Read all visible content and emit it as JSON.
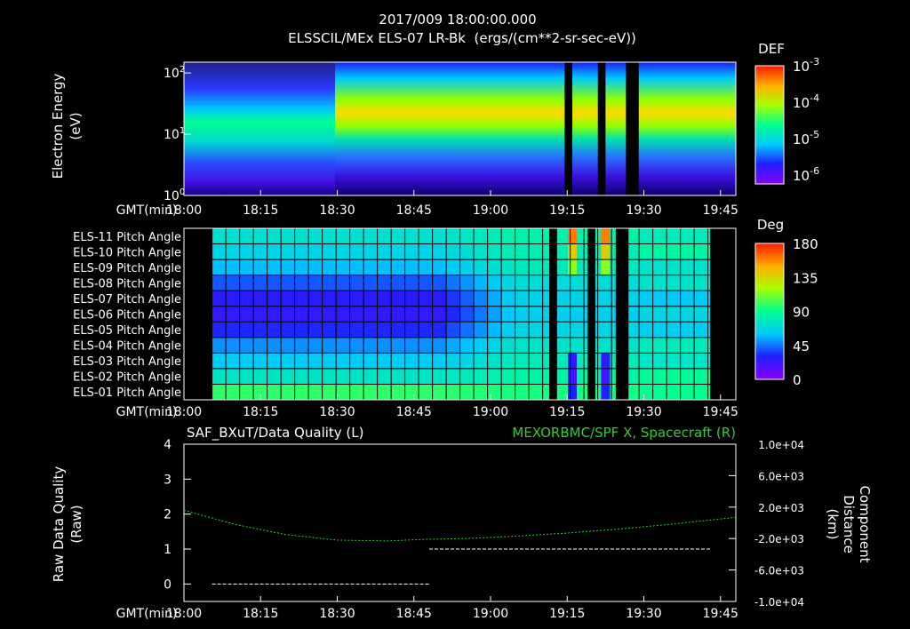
{
  "header": {
    "timestamp": "2017/009 18:00:00.000",
    "subtitle": "ELSSCIL/MEx ELS-07 LR-Bk  (ergs/(cm**2-sr-sec-eV))"
  },
  "chart_data": [
    {
      "type": "heatmap",
      "name": "electron-energy-spectrogram",
      "ylabel_line1": "Electron Energy",
      "ylabel_line2": "(eV)",
      "yscale": "log",
      "ylim": [
        1,
        150
      ],
      "yticks": [
        {
          "v": 1,
          "label": "10",
          "exp": "0"
        },
        {
          "v": 10,
          "label": "10",
          "exp": "1"
        },
        {
          "v": 100,
          "label": "10",
          "exp": "2"
        }
      ],
      "xlabel_prefix": "GMT(min)",
      "x_ticks": [
        "18:00",
        "18:15",
        "18:30",
        "18:45",
        "19:00",
        "19:15",
        "19:30",
        "19:45"
      ],
      "x_range_min": [
        0,
        108
      ],
      "data_gaps_min": [
        [
          74.5,
          76
        ],
        [
          81,
          82.5
        ],
        [
          86.5,
          89
        ]
      ],
      "colorbar": {
        "title": "DEF",
        "labels": [
          {
            "label": "10",
            "exp": "-3"
          },
          {
            "label": "10",
            "exp": "-4"
          },
          {
            "label": "10",
            "exp": "-5"
          },
          {
            "label": "10",
            "exp": "-6"
          }
        ]
      }
    },
    {
      "type": "heatmap",
      "name": "pitch-angle-grid",
      "row_labels": [
        "ELS-11 Pitch Angle",
        "ELS-10 Pitch Angle",
        "ELS-09 Pitch Angle",
        "ELS-08 Pitch Angle",
        "ELS-07 Pitch Angle",
        "ELS-06 Pitch Angle",
        "ELS-05 Pitch Angle",
        "ELS-04 Pitch Angle",
        "ELS-03 Pitch Angle",
        "ELS-02 Pitch Angle",
        "ELS-01 Pitch Angle"
      ],
      "row_base_deg": [
        72,
        66,
        58,
        40,
        28,
        25,
        32,
        50,
        62,
        75,
        98
      ],
      "xlabel_prefix": "GMT(min)",
      "x_ticks": [
        "18:00",
        "18:15",
        "18:30",
        "18:45",
        "19:00",
        "19:15",
        "19:30",
        "19:45"
      ],
      "x_range_min": [
        0,
        108
      ],
      "data_start_min": 5.5,
      "data_end_min": 103,
      "data_gaps_min": [
        [
          71.5,
          73
        ],
        [
          79,
          80.5
        ],
        [
          84.5,
          87
        ]
      ],
      "colorbar": {
        "title": "Deg",
        "ticks": [
          {
            "v": 180,
            "label": "180"
          },
          {
            "v": 135,
            "label": "135"
          },
          {
            "v": 90,
            "label": "90"
          },
          {
            "v": 45,
            "label": "45"
          },
          {
            "v": 0,
            "label": "0"
          }
        ]
      }
    },
    {
      "type": "line",
      "name": "data-quality-and-component-distance",
      "left_title": "SAF_BXuT/Data Quality (L)",
      "right_title": "MEXORBMC/SPF X, Spacecraft (R)",
      "left_axis": {
        "label_line1": "Raw Data Quality",
        "label_line2": "(Raw)",
        "ylim": [
          -0.5,
          4
        ],
        "ticks": [
          "0",
          "1",
          "2",
          "3",
          "4"
        ]
      },
      "right_axis": {
        "label_line1": "Component",
        "label_line2": "Distance",
        "label_line3": "(km)",
        "ylim": [
          -10000,
          10000
        ],
        "ticks": [
          "1.0e+04",
          "6.0e+03",
          "2.0e+03",
          "-2.0e+03",
          "-6.0e+03",
          "-1.0e+04"
        ],
        "tick_values": [
          10000,
          6000,
          2000,
          -2000,
          -6000,
          -10000
        ]
      },
      "xlabel_prefix": "GMT(min)",
      "x_ticks": [
        "18:00",
        "18:15",
        "18:30",
        "18:45",
        "19:00",
        "19:15",
        "19:30",
        "19:45"
      ],
      "x_range_min": [
        0,
        108
      ],
      "series": [
        {
          "name": "Data Quality",
          "axis": "left",
          "color": "#ffffff",
          "segments": [
            [
              [
                5.5,
                0
              ],
              [
                48,
                0
              ]
            ],
            [
              [
                48,
                1
              ],
              [
                103,
                1
              ]
            ]
          ]
        },
        {
          "name": "SPF X",
          "axis": "right",
          "color": "#33cc33",
          "x": [
            0,
            10,
            20,
            30,
            40,
            47,
            55,
            65,
            75,
            85,
            95,
            108
          ],
          "y": [
            1600,
            -200,
            -1500,
            -2200,
            -2300,
            -2100,
            -2000,
            -1700,
            -1300,
            -800,
            -200,
            700
          ]
        }
      ]
    }
  ]
}
